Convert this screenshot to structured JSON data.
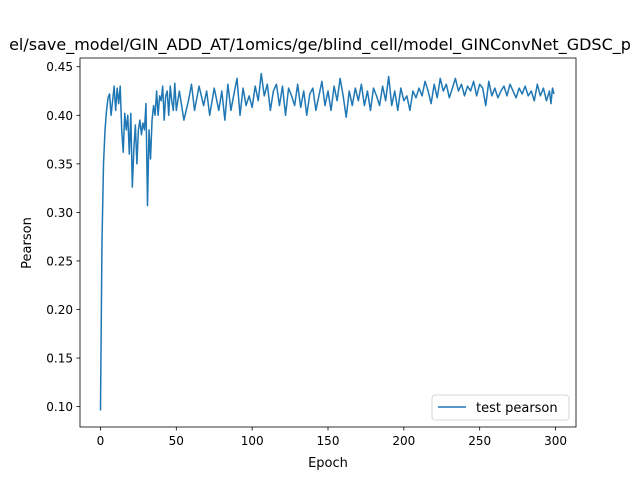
{
  "chart_data": {
    "type": "line",
    "title": "el/save_model/GIN_ADD_AT/1omics/ge/blind_cell/model_GINConvNet_GDSC_p",
    "xlabel": "Epoch",
    "ylabel": "Pearson",
    "xlim": [
      -13.5,
      313.5
    ],
    "ylim": [
      0.079,
      0.459
    ],
    "xticks": [
      0,
      50,
      100,
      150,
      200,
      250,
      300
    ],
    "xtick_labels": [
      "0",
      "50",
      "100",
      "150",
      "200",
      "250",
      "300"
    ],
    "yticks": [
      0.1,
      0.15,
      0.2,
      0.25,
      0.3,
      0.35,
      0.4,
      0.45
    ],
    "ytick_labels": [
      "0.10",
      "0.15",
      "0.20",
      "0.25",
      "0.30",
      "0.35",
      "0.40",
      "0.45"
    ],
    "legend_position": "lower-right",
    "line_color": "#1f77b4",
    "series": [
      {
        "name": "test pearson",
        "key_points": [
          [
            0,
            0.096
          ],
          [
            1,
            0.27
          ],
          [
            2,
            0.35
          ],
          [
            3,
            0.385
          ],
          [
            4,
            0.405
          ],
          [
            5,
            0.418
          ],
          [
            6,
            0.422
          ],
          [
            7,
            0.4
          ],
          [
            8,
            0.415
          ],
          [
            9,
            0.43
          ],
          [
            10,
            0.405
          ],
          [
            11,
            0.428
          ],
          [
            12,
            0.412
          ],
          [
            13,
            0.43
          ],
          [
            14,
            0.385
          ],
          [
            15,
            0.362
          ],
          [
            16,
            0.402
          ],
          [
            17,
            0.385
          ],
          [
            18,
            0.4
          ],
          [
            19,
            0.36
          ],
          [
            20,
            0.402
          ],
          [
            21,
            0.326
          ],
          [
            22,
            0.365
          ],
          [
            23,
            0.39
          ],
          [
            24,
            0.35
          ],
          [
            25,
            0.385
          ],
          [
            26,
            0.395
          ],
          [
            27,
            0.38
          ],
          [
            28,
            0.392
          ],
          [
            29,
            0.385
          ],
          [
            30,
            0.412
          ],
          [
            31,
            0.307
          ],
          [
            32,
            0.385
          ],
          [
            33,
            0.355
          ],
          [
            34,
            0.395
          ],
          [
            35,
            0.41
          ],
          [
            36,
            0.4
          ],
          [
            37,
            0.425
          ],
          [
            38,
            0.4
          ],
          [
            39,
            0.42
          ],
          [
            40,
            0.415
          ],
          [
            41,
            0.43
          ],
          [
            42,
            0.395
          ],
          [
            43,
            0.42
          ],
          [
            44,
            0.425
          ],
          [
            45,
            0.4
          ],
          [
            46,
            0.43
          ],
          [
            47,
            0.415
          ],
          [
            48,
            0.405
          ],
          [
            49,
            0.433
          ],
          [
            50,
            0.405
          ],
          [
            52,
            0.425
          ],
          [
            55,
            0.395
          ],
          [
            58,
            0.415
          ],
          [
            60,
            0.432
          ],
          [
            62,
            0.405
          ],
          [
            65,
            0.43
          ],
          [
            68,
            0.41
          ],
          [
            70,
            0.425
          ],
          [
            72,
            0.4
          ],
          [
            75,
            0.428
          ],
          [
            78,
            0.405
          ],
          [
            80,
            0.425
          ],
          [
            82,
            0.395
          ],
          [
            84,
            0.432
          ],
          [
            86,
            0.405
          ],
          [
            88,
            0.422
          ],
          [
            90,
            0.438
          ],
          [
            92,
            0.4
          ],
          [
            94,
            0.428
          ],
          [
            96,
            0.41
          ],
          [
            98,
            0.42
          ],
          [
            100,
            0.408
          ],
          [
            102,
            0.43
          ],
          [
            104,
            0.415
          ],
          [
            106,
            0.443
          ],
          [
            108,
            0.42
          ],
          [
            110,
            0.432
          ],
          [
            112,
            0.405
          ],
          [
            114,
            0.425
          ],
          [
            116,
            0.432
          ],
          [
            118,
            0.41
          ],
          [
            120,
            0.43
          ],
          [
            122,
            0.4
          ],
          [
            124,
            0.428
          ],
          [
            126,
            0.42
          ],
          [
            128,
            0.41
          ],
          [
            130,
            0.432
          ],
          [
            132,
            0.408
          ],
          [
            134,
            0.425
          ],
          [
            136,
            0.4
          ],
          [
            138,
            0.422
          ],
          [
            140,
            0.428
          ],
          [
            142,
            0.405
          ],
          [
            144,
            0.42
          ],
          [
            146,
            0.435
          ],
          [
            148,
            0.41
          ],
          [
            150,
            0.425
          ],
          [
            152,
            0.405
          ],
          [
            154,
            0.43
          ],
          [
            156,
            0.415
          ],
          [
            158,
            0.438
          ],
          [
            160,
            0.42
          ],
          [
            162,
            0.398
          ],
          [
            164,
            0.425
          ],
          [
            166,
            0.41
          ],
          [
            168,
            0.428
          ],
          [
            170,
            0.415
          ],
          [
            172,
            0.432
          ],
          [
            174,
            0.41
          ],
          [
            176,
            0.425
          ],
          [
            178,
            0.405
          ],
          [
            180,
            0.428
          ],
          [
            182,
            0.42
          ],
          [
            184,
            0.41
          ],
          [
            186,
            0.43
          ],
          [
            188,
            0.415
          ],
          [
            190,
            0.44
          ],
          [
            192,
            0.41
          ],
          [
            194,
            0.425
          ],
          [
            196,
            0.405
          ],
          [
            198,
            0.428
          ],
          [
            200,
            0.415
          ],
          [
            202,
            0.42
          ],
          [
            204,
            0.405
          ],
          [
            206,
            0.425
          ],
          [
            208,
            0.418
          ],
          [
            210,
            0.428
          ],
          [
            212,
            0.42
          ],
          [
            214,
            0.435
          ],
          [
            216,
            0.425
          ],
          [
            218,
            0.412
          ],
          [
            220,
            0.432
          ],
          [
            222,
            0.418
          ],
          [
            224,
            0.438
          ],
          [
            226,
            0.425
          ],
          [
            228,
            0.432
          ],
          [
            230,
            0.418
          ],
          [
            232,
            0.428
          ],
          [
            234,
            0.438
          ],
          [
            236,
            0.425
          ],
          [
            238,
            0.432
          ],
          [
            240,
            0.42
          ],
          [
            242,
            0.43
          ],
          [
            244,
            0.425
          ],
          [
            246,
            0.435
          ],
          [
            248,
            0.42
          ],
          [
            250,
            0.432
          ],
          [
            252,
            0.428
          ],
          [
            254,
            0.41
          ],
          [
            256,
            0.435
          ],
          [
            258,
            0.42
          ],
          [
            260,
            0.428
          ],
          [
            262,
            0.418
          ],
          [
            264,
            0.425
          ],
          [
            266,
            0.43
          ],
          [
            268,
            0.42
          ],
          [
            270,
            0.432
          ],
          [
            272,
            0.425
          ],
          [
            274,
            0.418
          ],
          [
            276,
            0.428
          ],
          [
            278,
            0.422
          ],
          [
            280,
            0.43
          ],
          [
            282,
            0.42
          ],
          [
            284,
            0.425
          ],
          [
            286,
            0.415
          ],
          [
            288,
            0.432
          ],
          [
            290,
            0.42
          ],
          [
            292,
            0.428
          ],
          [
            294,
            0.415
          ],
          [
            296,
            0.425
          ],
          [
            297,
            0.412
          ],
          [
            298,
            0.428
          ],
          [
            299,
            0.422
          ]
        ]
      }
    ]
  }
}
